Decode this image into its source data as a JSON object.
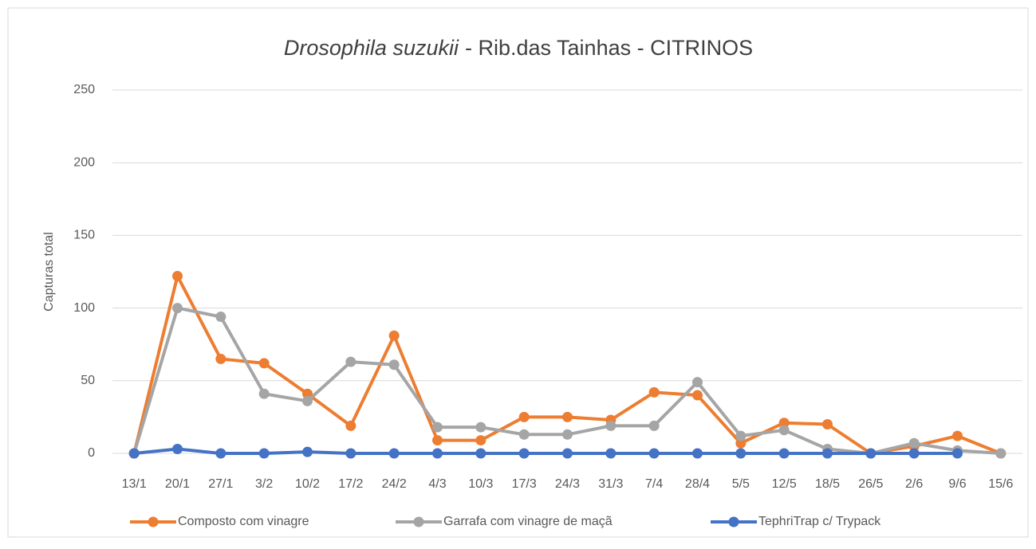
{
  "chart_data": {
    "type": "line",
    "title": {
      "species": "Drosophila suzukii",
      "rest": "- Rib.das Tainhas - CITRINOS"
    },
    "y_label": "Capturas total",
    "categories": [
      "13/1",
      "20/1",
      "27/1",
      "3/2",
      "10/2",
      "17/2",
      "24/2",
      "4/3",
      "10/3",
      "17/3",
      "24/3",
      "31/3",
      "7/4",
      "28/4",
      "5/5",
      "12/5",
      "18/5",
      "26/5",
      "2/6",
      "9/6",
      "15/6"
    ],
    "series": [
      {
        "name": "Composto com vinagre",
        "color": "#ed7d31",
        "values": [
          0,
          122,
          65,
          62,
          41,
          19,
          81,
          9,
          9,
          25,
          25,
          23,
          42,
          40,
          7,
          21,
          20,
          0,
          5,
          12,
          0
        ]
      },
      {
        "name": "Garrafa com vinagre de maçã",
        "color": "#a5a5a5",
        "values": [
          0,
          100,
          94,
          41,
          36,
          63,
          61,
          18,
          18,
          13,
          13,
          19,
          19,
          49,
          12,
          16,
          3,
          0,
          7,
          2,
          0
        ]
      },
      {
        "name": "TephriTrap c/ Trypack",
        "color": "#4472c4",
        "values": [
          0,
          3,
          0,
          0,
          1,
          0,
          0,
          0,
          0,
          0,
          0,
          0,
          0,
          0,
          0,
          0,
          0,
          0,
          0,
          0,
          null
        ]
      }
    ],
    "ylim": [
      0,
      250
    ],
    "yticks": [
      0,
      50,
      100,
      150,
      200,
      250
    ],
    "grid": true,
    "legend": "bottom"
  }
}
